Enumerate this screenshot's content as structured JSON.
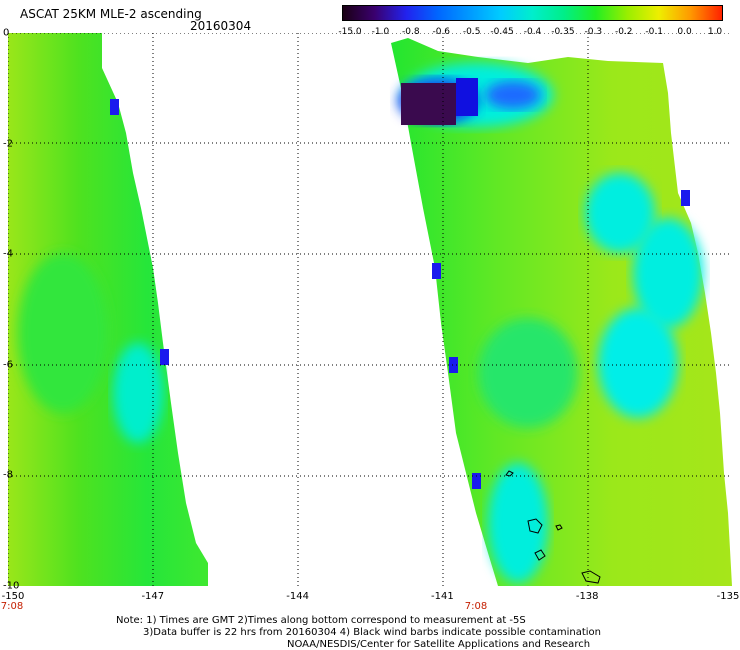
{
  "header": {
    "title": "ASCAT 25KM MLE-2 ascending",
    "date": "20160304"
  },
  "colorbar": {
    "labels": [
      "-15.0",
      "-1.0",
      "-0.8",
      "-0.6",
      "-0.5",
      "-0.45",
      "-0.4",
      "-0.35",
      "-0.3",
      "-0.2",
      "-0.1",
      "0.0",
      "1.0"
    ],
    "colors": [
      "#1a0014",
      "#3a006e",
      "#2222ee",
      "#0066ff",
      "#0099ff",
      "#00ccff",
      "#00eecc",
      "#00ee88",
      "#22ee22",
      "#99ee00",
      "#eeee00",
      "#ff9900",
      "#ff2200"
    ]
  },
  "map": {
    "lon_range": [
      -150,
      -135
    ],
    "lat_range": [
      -10,
      0
    ],
    "x_ticks": [
      "-150",
      "-147",
      "-144",
      "-141",
      "-138",
      "-135"
    ],
    "y_ticks": [
      "0",
      "-2",
      "-4",
      "-6",
      "-8",
      "-10"
    ],
    "pass_times": [
      "7:08",
      "7:08"
    ]
  },
  "notes": {
    "line1": "Note: 1) Times are GMT 2)Times along bottom correspond to measurement at -5S",
    "line2": "3)Data buffer is 22 hrs from 20160304 4) Black wind barbs indicate possible contamination",
    "line3": "NOAA/NESDIS/Center for Satellite Applications and Research"
  }
}
